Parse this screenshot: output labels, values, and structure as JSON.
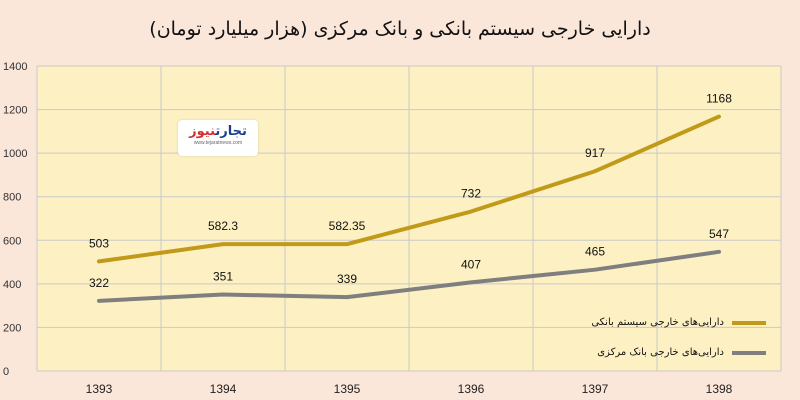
{
  "colors": {
    "plot_bg": "#fdf1c4",
    "grid": "#c9c9c9",
    "series_bank": "#c19a19",
    "series_central": "#7f7f7f"
  },
  "logo": {
    "brand_part1": "تجارت",
    "brand_part2": "نیوز",
    "site": "www.tejaratnews.com"
  },
  "chart_data": {
    "type": "line",
    "title": "دارایی خارجی سیستم بانکی و بانک مرکزی (هزار میلیارد تومان)",
    "x": [
      "1393",
      "1394",
      "1395",
      "1396",
      "1397",
      "1398"
    ],
    "ylim": [
      0,
      1400
    ],
    "yticks": [
      0,
      200,
      400,
      600,
      800,
      1000,
      1200,
      1400
    ],
    "grid": true,
    "legend_position": "bottom-right",
    "series": [
      {
        "name": "دارایی‌های خارجی سیستم بانکی",
        "values": [
          503,
          582.3,
          582.35,
          732,
          917,
          1168
        ],
        "labels": [
          "503",
          "582.3",
          "582.35",
          "732",
          "917",
          "1168"
        ]
      },
      {
        "name": "دارایی‌های خارجی بانک مرکزی",
        "values": [
          322,
          351,
          339,
          407,
          465,
          547
        ],
        "labels": [
          "322",
          "351",
          "339",
          "407",
          "465",
          "547"
        ]
      }
    ]
  }
}
